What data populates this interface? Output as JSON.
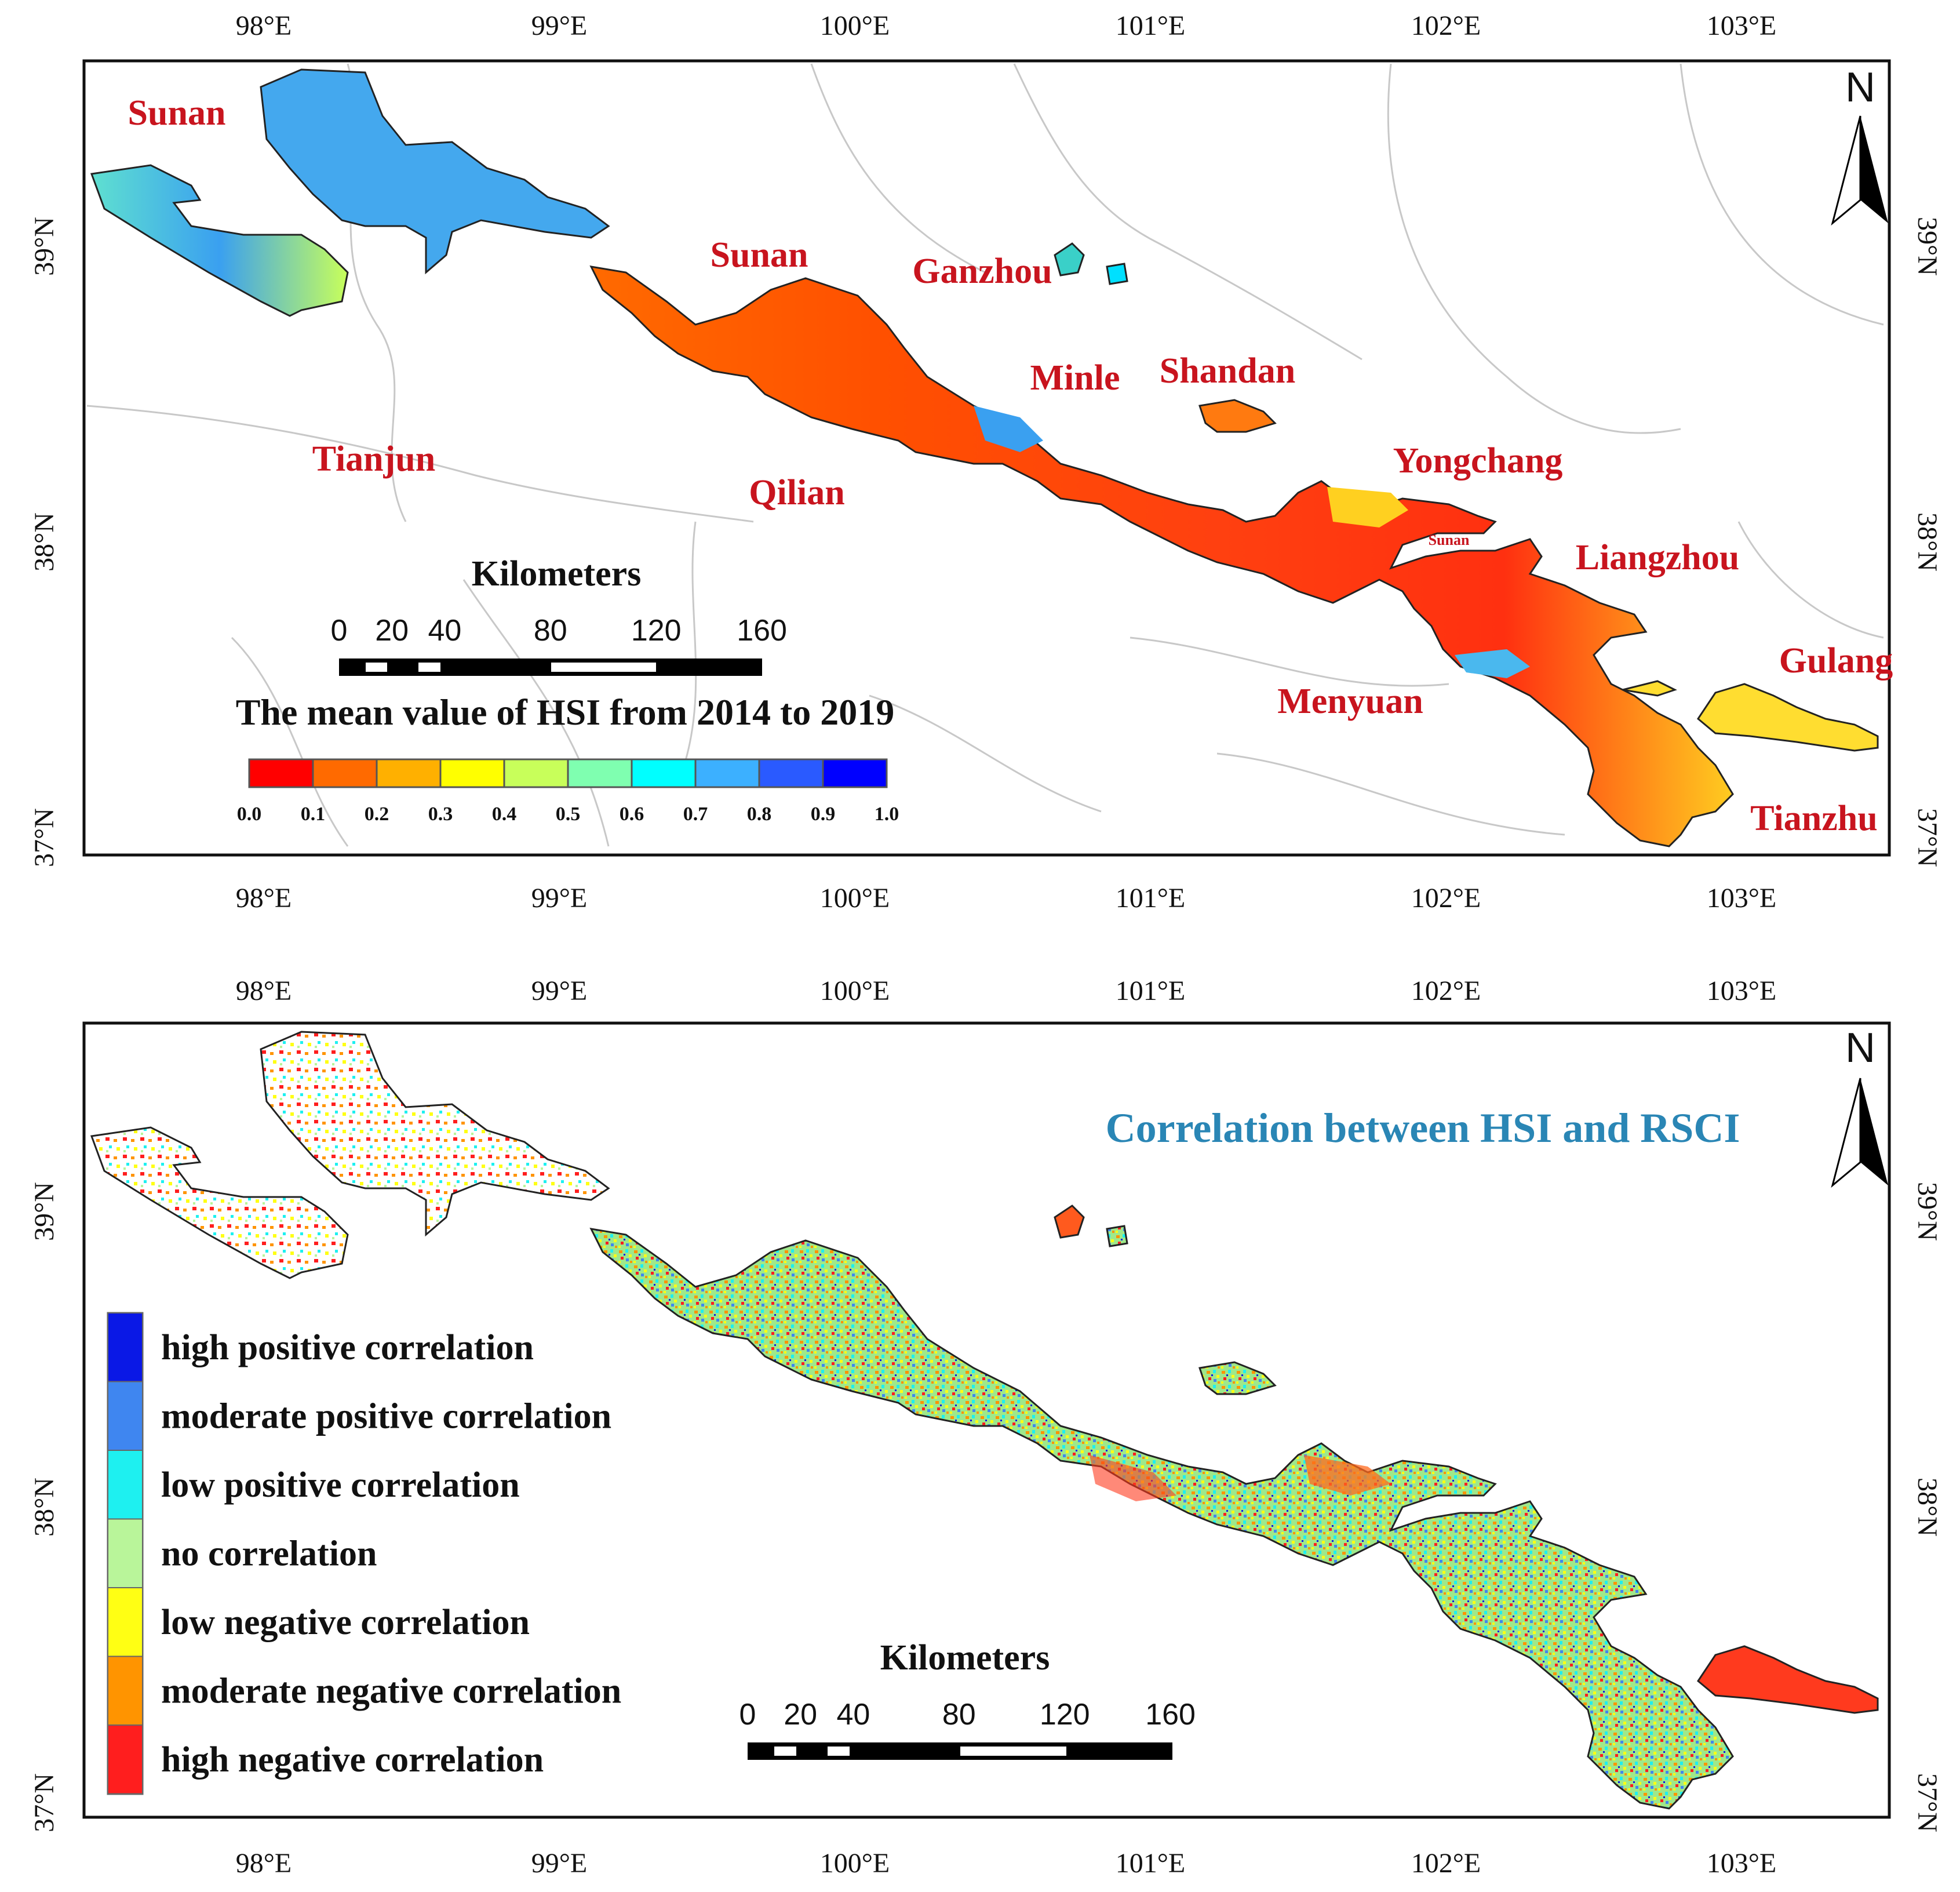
{
  "axes": {
    "lon_labels": [
      "98°E",
      "99°E",
      "100°E",
      "101°E",
      "102°E",
      "103°E"
    ],
    "lat_labels": [
      "39°N",
      "38°N",
      "37°N"
    ]
  },
  "top_map": {
    "places": [
      {
        "id": "sunan-1",
        "name": "Sunan"
      },
      {
        "id": "sunan-2",
        "name": "Sunan"
      },
      {
        "id": "ganzhou",
        "name": "Ganzhou"
      },
      {
        "id": "minle",
        "name": "Minle"
      },
      {
        "id": "shandan",
        "name": "Shandan"
      },
      {
        "id": "tianjun",
        "name": "Tianjun"
      },
      {
        "id": "qilian",
        "name": "Qilian"
      },
      {
        "id": "yongchang",
        "name": "Yongchang"
      },
      {
        "id": "sunan-3",
        "name": "Sunan"
      },
      {
        "id": "liangzhou",
        "name": "Liangzhou"
      },
      {
        "id": "gulang",
        "name": "Gulang"
      },
      {
        "id": "menyuan",
        "name": "Menyuan"
      },
      {
        "id": "tianzhu",
        "name": "Tianzhu"
      }
    ],
    "scale_title": "Kilometers",
    "scale_labels": [
      "0",
      "20",
      "40",
      "80",
      "120",
      "160"
    ],
    "legend_title": "The mean value of HSI from 2014 to 2019",
    "ramp_colors": [
      "#ff0000",
      "#ff6a00",
      "#ffb000",
      "#ffff00",
      "#c8ff5a",
      "#7fffb0",
      "#00ffff",
      "#3cb0ff",
      "#2a5aff",
      "#0000ff"
    ],
    "ramp_labels": [
      "0.0",
      "0.1",
      "0.2",
      "0.3",
      "0.4",
      "0.5",
      "0.6",
      "0.7",
      "0.8",
      "0.9",
      "1.0"
    ],
    "north_label": "N"
  },
  "bottom_map": {
    "title": "Correlation between HSI and RSCI",
    "legend": [
      {
        "label": "high positive correlation",
        "color": "#0a18e6"
      },
      {
        "label": "moderate positive correlation",
        "color": "#3f86f0"
      },
      {
        "label": "low positive correlation",
        "color": "#1ef0f0"
      },
      {
        "label": "no correlation",
        "color": "#b9f59a"
      },
      {
        "label": "low negative correlation",
        "color": "#ffff14"
      },
      {
        "label": "moderate negative correlation",
        "color": "#ff9400"
      },
      {
        "label": "high negative correlation",
        "color": "#ff1e1e"
      }
    ],
    "scale_title": "Kilometers",
    "scale_labels": [
      "0",
      "20",
      "40",
      "80",
      "120",
      "160"
    ],
    "north_label": "N"
  }
}
